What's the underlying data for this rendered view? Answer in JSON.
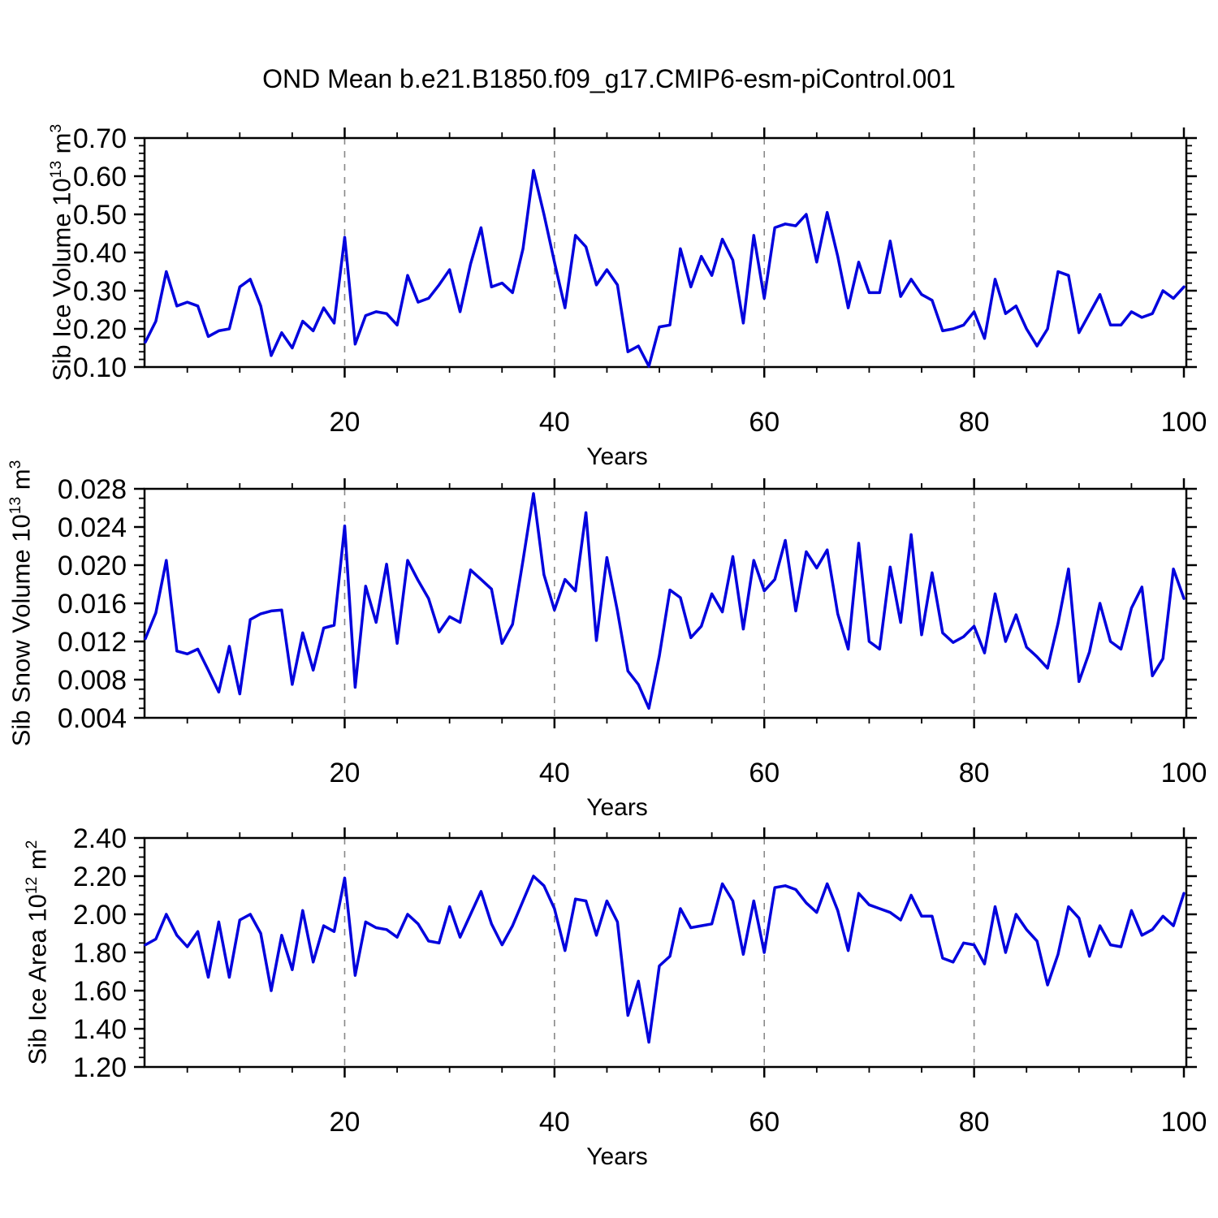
{
  "title": "OND Mean b.e21.B1850.f09_g17.CMIP6-esm-piControl.001",
  "colors": {
    "line": "#0202dd",
    "grid": "#888888",
    "axis": "#000000"
  },
  "chart_data": [
    {
      "type": "line",
      "name": "sib-ice-volume",
      "ylabel": {
        "pre": "Sib Ice Volume 10",
        "sup": "13",
        "mid": " m",
        "sup2": "3"
      },
      "xlabel": "Years",
      "ylim": [
        0.1,
        0.7
      ],
      "ytick_step": 0.1,
      "yminor_step": 0.02,
      "ydecimals": 2,
      "xlim": [
        1,
        100
      ],
      "xticks": [
        20,
        40,
        60,
        80,
        100
      ],
      "xminor_step": 5,
      "grid_x": [
        20,
        40,
        60,
        80
      ],
      "x_start": 1,
      "values": [
        0.165,
        0.22,
        0.35,
        0.26,
        0.27,
        0.26,
        0.18,
        0.195,
        0.2,
        0.31,
        0.33,
        0.26,
        0.13,
        0.19,
        0.15,
        0.22,
        0.195,
        0.255,
        0.215,
        0.44,
        0.16,
        0.235,
        0.245,
        0.24,
        0.21,
        0.34,
        0.27,
        0.28,
        0.315,
        0.355,
        0.245,
        0.37,
        0.465,
        0.31,
        0.32,
        0.295,
        0.41,
        0.615,
        0.5,
        0.375,
        0.255,
        0.445,
        0.415,
        0.315,
        0.355,
        0.315,
        0.14,
        0.155,
        0.102,
        0.205,
        0.21,
        0.41,
        0.31,
        0.39,
        0.34,
        0.435,
        0.38,
        0.215,
        0.445,
        0.28,
        0.465,
        0.475,
        0.47,
        0.5,
        0.375,
        0.505,
        0.39,
        0.255,
        0.375,
        0.295,
        0.295,
        0.43,
        0.285,
        0.33,
        0.29,
        0.275,
        0.195,
        0.2,
        0.21,
        0.245,
        0.175,
        0.33,
        0.24,
        0.26,
        0.2,
        0.155,
        0.2,
        0.35,
        0.34,
        0.19,
        0.24,
        0.29,
        0.21,
        0.21,
        0.245,
        0.23,
        0.24,
        0.3,
        0.28,
        0.31
      ]
    },
    {
      "type": "line",
      "name": "sib-snow-volume",
      "ylabel": {
        "pre": "Sib Snow Volume 10",
        "sup": "13",
        "mid": " m",
        "sup2": "3"
      },
      "xlabel": "Years",
      "ylim": [
        0.004,
        0.028
      ],
      "ytick_step": 0.004,
      "yminor_step": 0.001,
      "ydecimals": 3,
      "xlim": [
        1,
        100
      ],
      "xticks": [
        20,
        40,
        60,
        80,
        100
      ],
      "xminor_step": 5,
      "grid_x": [
        20,
        40,
        60,
        80
      ],
      "x_start": 1,
      "values": [
        0.0123,
        0.015,
        0.0205,
        0.011,
        0.0107,
        0.0112,
        0.009,
        0.0067,
        0.0115,
        0.0065,
        0.0143,
        0.0149,
        0.0152,
        0.0153,
        0.0075,
        0.0129,
        0.009,
        0.0134,
        0.0137,
        0.0241,
        0.0072,
        0.0178,
        0.014,
        0.0201,
        0.0118,
        0.0205,
        0.0184,
        0.0165,
        0.013,
        0.0146,
        0.014,
        0.0195,
        0.0185,
        0.0175,
        0.0118,
        0.0138,
        0.0205,
        0.0275,
        0.019,
        0.0153,
        0.0185,
        0.0173,
        0.0255,
        0.0121,
        0.0208,
        0.0152,
        0.0089,
        0.0075,
        0.005,
        0.0105,
        0.0174,
        0.0166,
        0.0124,
        0.0136,
        0.017,
        0.0151,
        0.0209,
        0.0133,
        0.0205,
        0.0173,
        0.0185,
        0.0226,
        0.0152,
        0.0214,
        0.0197,
        0.0216,
        0.0149,
        0.0112,
        0.0223,
        0.012,
        0.0112,
        0.0198,
        0.014,
        0.0232,
        0.0127,
        0.0192,
        0.0129,
        0.0119,
        0.0125,
        0.0136,
        0.0108,
        0.017,
        0.012,
        0.0148,
        0.0114,
        0.0104,
        0.0092,
        0.0139,
        0.0196,
        0.0078,
        0.0109,
        0.016,
        0.012,
        0.0112,
        0.0155,
        0.0177,
        0.0084,
        0.0102,
        0.0196,
        0.0165
      ]
    },
    {
      "type": "line",
      "name": "sib-ice-area",
      "ylabel": {
        "pre": "Sib Ice Area 10",
        "sup": "12",
        "mid": " m",
        "sup2": "2"
      },
      "xlabel": "Years",
      "ylim": [
        1.2,
        2.4
      ],
      "ytick_step": 0.2,
      "yminor_step": 0.05,
      "ydecimals": 2,
      "xlim": [
        1,
        100
      ],
      "xticks": [
        20,
        40,
        60,
        80,
        100
      ],
      "xminor_step": 5,
      "grid_x": [
        20,
        40,
        60,
        80
      ],
      "x_start": 1,
      "values": [
        1.84,
        1.87,
        2.0,
        1.89,
        1.83,
        1.91,
        1.67,
        1.96,
        1.67,
        1.97,
        2.0,
        1.9,
        1.6,
        1.89,
        1.71,
        2.02,
        1.75,
        1.94,
        1.91,
        2.19,
        1.68,
        1.96,
        1.93,
        1.92,
        1.88,
        2.0,
        1.95,
        1.86,
        1.85,
        2.04,
        1.88,
        2.0,
        2.12,
        1.95,
        1.84,
        1.94,
        2.07,
        2.2,
        2.15,
        2.03,
        1.81,
        2.08,
        2.07,
        1.89,
        2.07,
        1.96,
        1.47,
        1.65,
        1.33,
        1.73,
        1.78,
        2.03,
        1.93,
        1.94,
        1.95,
        2.16,
        2.07,
        1.79,
        2.07,
        1.8,
        2.14,
        2.15,
        2.13,
        2.06,
        2.01,
        2.16,
        2.02,
        1.81,
        2.11,
        2.05,
        2.03,
        2.01,
        1.97,
        2.1,
        1.99,
        1.99,
        1.77,
        1.75,
        1.85,
        1.84,
        1.74,
        2.04,
        1.8,
        2.0,
        1.92,
        1.86,
        1.63,
        1.79,
        2.04,
        1.98,
        1.78,
        1.94,
        1.84,
        1.83,
        2.02,
        1.89,
        1.92,
        1.99,
        1.94,
        2.11
      ]
    }
  ]
}
